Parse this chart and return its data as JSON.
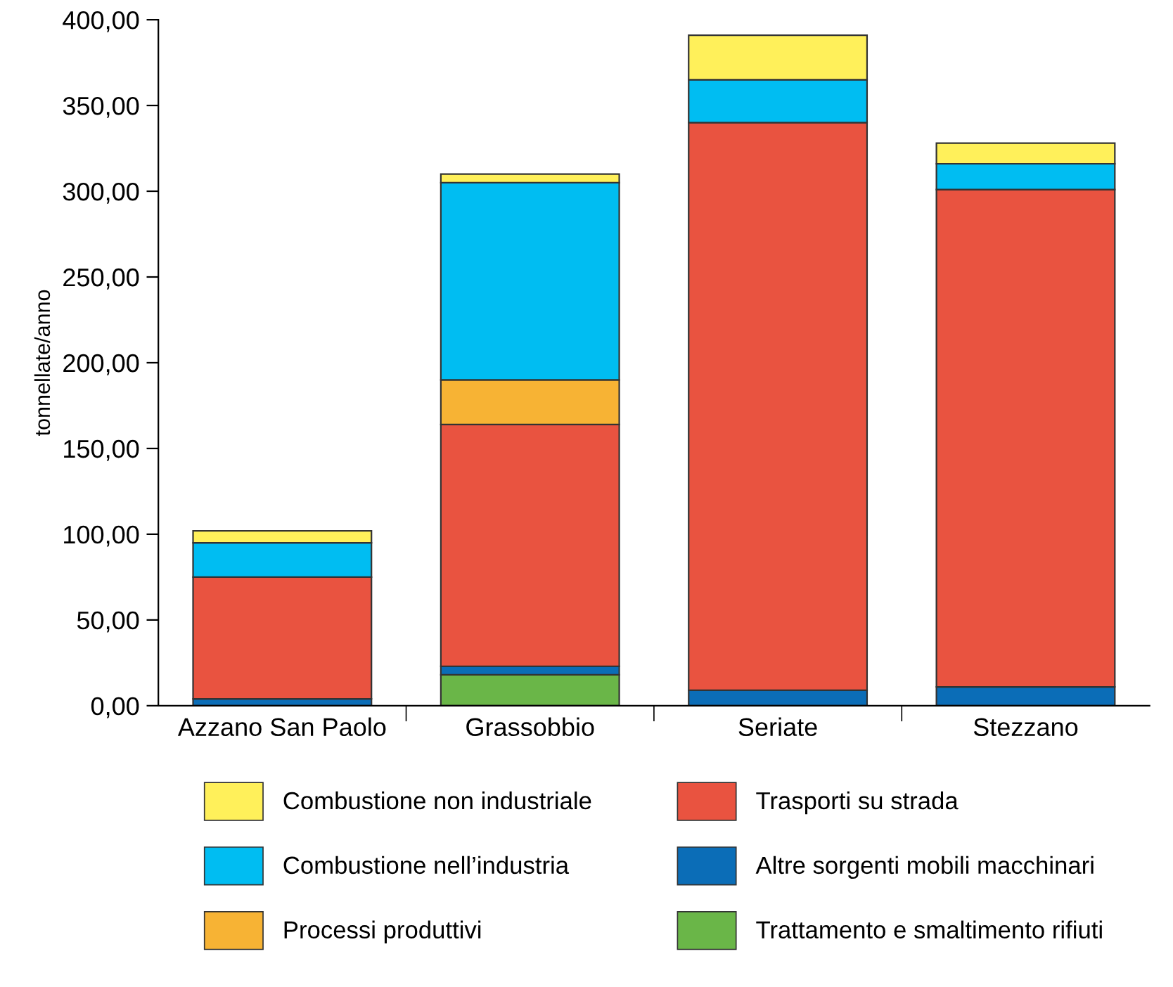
{
  "chart_data": {
    "type": "bar",
    "stacked": true,
    "ylabel": "tonnellate/anno",
    "categories": [
      "Azzano San Paolo",
      "Grassobbio",
      "Seriate",
      "Stezzano"
    ],
    "series": [
      {
        "name": "Trattamento e smaltimento rifiuti",
        "color": "#6ab648",
        "values": [
          null,
          18,
          null,
          null
        ]
      },
      {
        "name": "Altre sorgenti mobili macchinari",
        "color": "#0b6db7",
        "values": [
          4,
          5,
          9,
          11
        ]
      },
      {
        "name": "Trasporti su strada",
        "color": "#e95340",
        "values": [
          71,
          141,
          331,
          290
        ]
      },
      {
        "name": "Processi produttivi",
        "color": "#f7b334",
        "values": [
          null,
          26,
          null,
          null
        ]
      },
      {
        "name": "Combustione nell’industria",
        "color": "#00bdf2",
        "values": [
          20,
          115,
          25,
          15
        ]
      },
      {
        "name": "Combustione non industriale",
        "color": "#fff05a",
        "values": [
          7,
          5,
          26,
          12
        ]
      }
    ],
    "ylim": [
      0,
      400
    ],
    "yticks": [
      {
        "value": 0,
        "label": "0,00"
      },
      {
        "value": 50,
        "label": "50,00"
      },
      {
        "value": 100,
        "label": "100,00"
      },
      {
        "value": 150,
        "label": "150,00"
      },
      {
        "value": 200,
        "label": "200,00"
      },
      {
        "value": 250,
        "label": "250,00"
      },
      {
        "value": 300,
        "label": "300,00"
      },
      {
        "value": 350,
        "label": "350,00"
      },
      {
        "value": 400,
        "label": "400,00"
      }
    ],
    "grid": false,
    "legend": "bottom"
  }
}
